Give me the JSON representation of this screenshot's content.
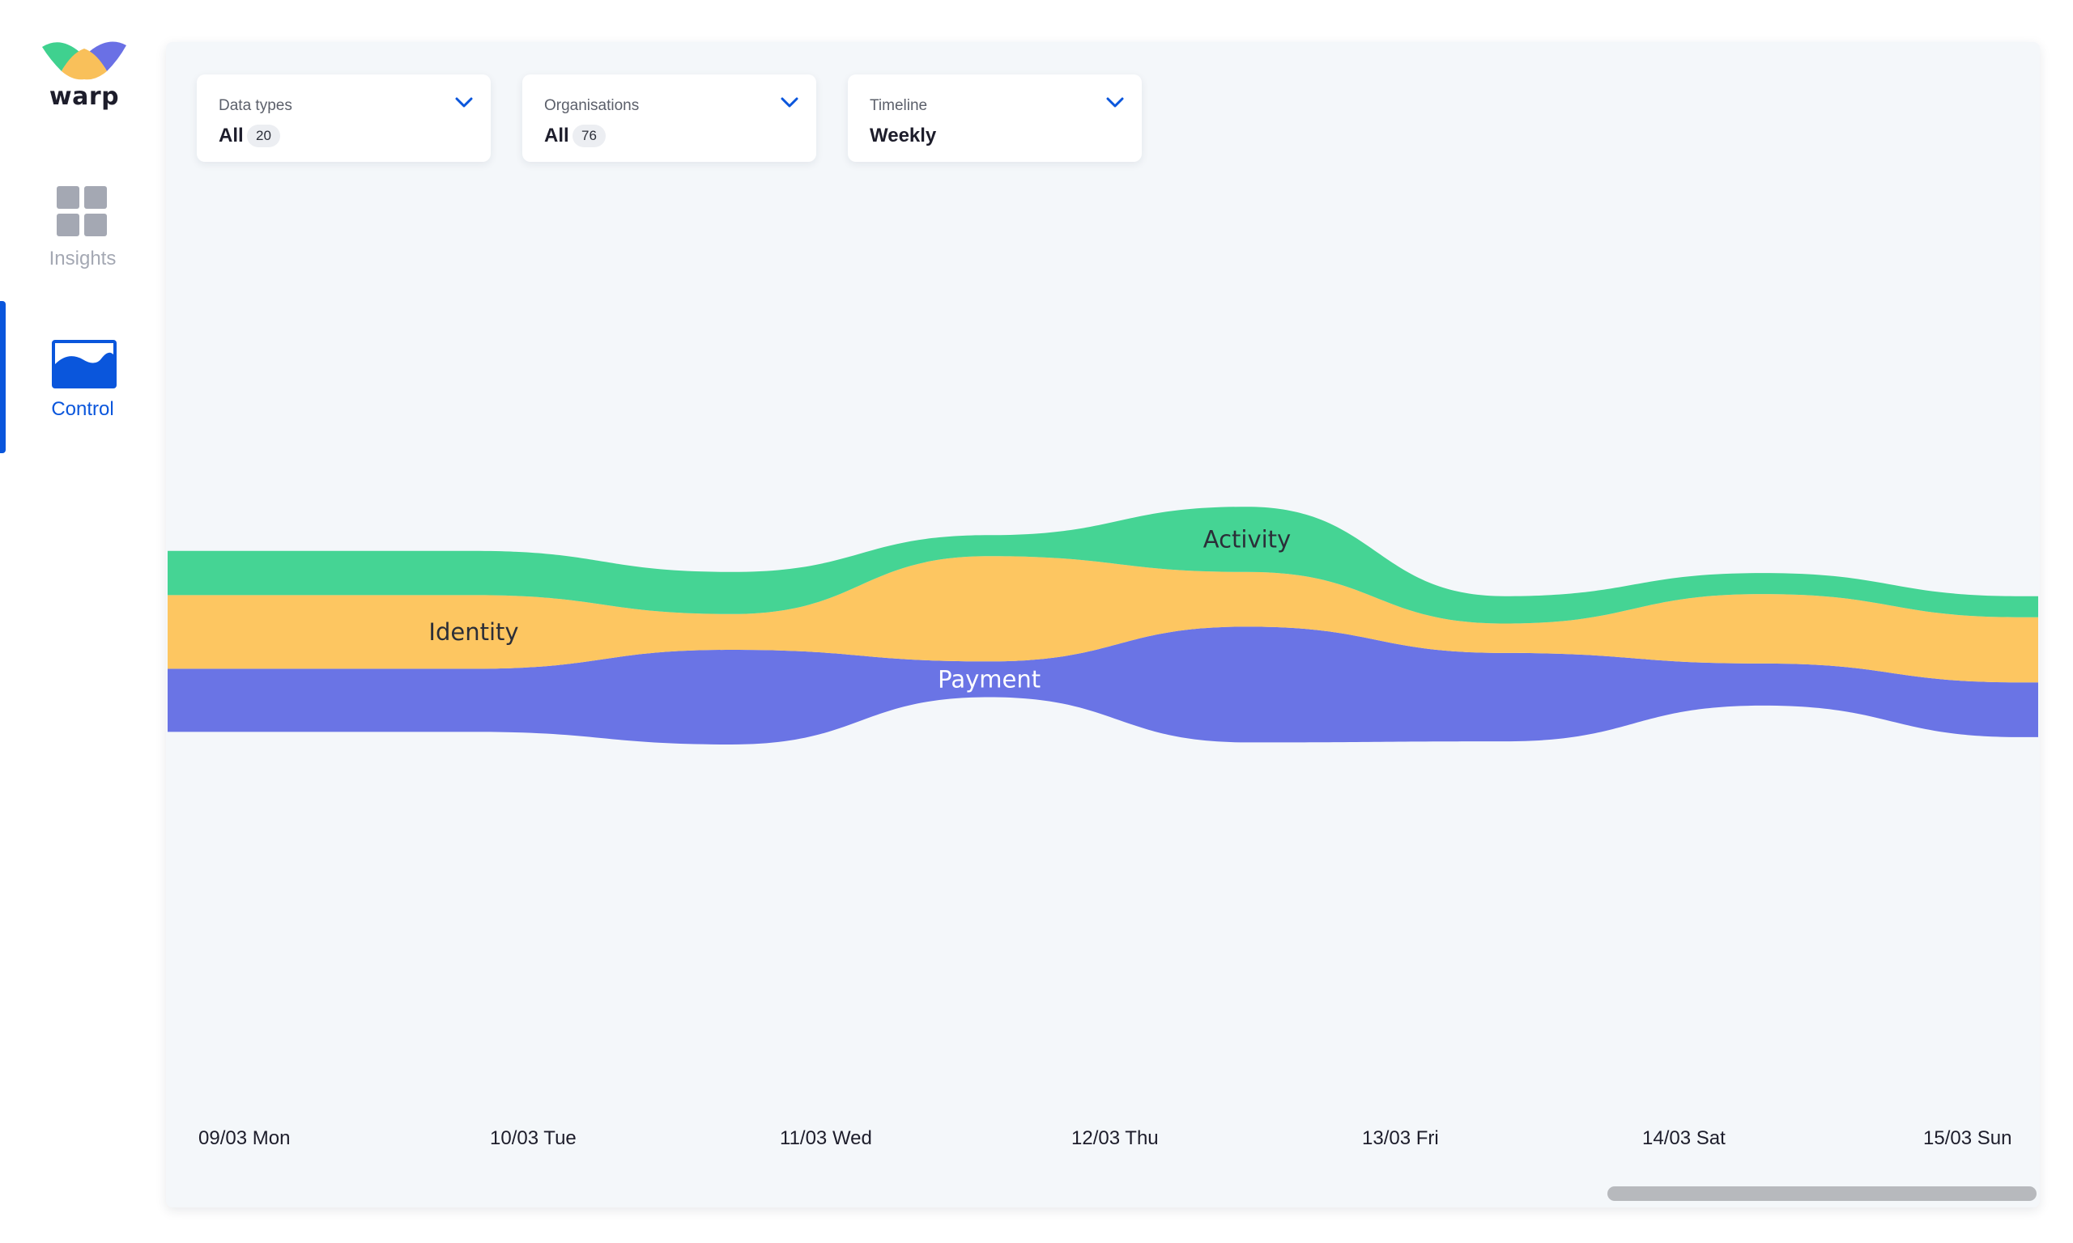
{
  "app": {
    "logo_text": "warp",
    "logo_colors": [
      "#3fd18f",
      "#f9c05a",
      "#6a70e5"
    ]
  },
  "sidebar": {
    "items": [
      {
        "label": "Insights",
        "icon": "grid-icon",
        "active": false
      },
      {
        "label": "Control",
        "icon": "stream-chart-icon",
        "active": true
      }
    ]
  },
  "filters": {
    "data_types": {
      "label": "Data types",
      "value": "All",
      "count": "20"
    },
    "organisations": {
      "label": "Organisations",
      "value": "All",
      "count": "76"
    },
    "timeline": {
      "label": "Timeline",
      "value": "Weekly"
    }
  },
  "colors": {
    "accent": "#0a56dc",
    "activity": "#45d494",
    "identity": "#fdc661",
    "payment": "#6a74e5"
  },
  "chart_data": {
    "type": "area",
    "subtype": "streamgraph",
    "x": [
      "09/03 Mon",
      "10/03 Tue",
      "11/03 Wed",
      "12/03 Thu",
      "13/03 Fri",
      "14/03 Sat",
      "15/03 Sun"
    ],
    "series": [
      {
        "name": "Payment",
        "color": "#6a74e5",
        "values": [
          3.0,
          4.5,
          1.7,
          5.5,
          4.2,
          2.0,
          2.6
        ]
      },
      {
        "name": "Identity",
        "color": "#fdc661",
        "values": [
          3.5,
          1.7,
          5.0,
          2.6,
          1.4,
          3.3,
          3.1
        ]
      },
      {
        "name": "Activity",
        "color": "#45d494",
        "values": [
          2.1,
          2.0,
          1.0,
          3.1,
          1.3,
          1.0,
          1.0
        ]
      }
    ],
    "labels_at": {
      "Identity": "09/03 Mon",
      "Payment": "11/03 Wed",
      "Activity": "12/03 Thu"
    },
    "ylim": [
      -8,
      8
    ],
    "grid": false,
    "legend": "none"
  }
}
